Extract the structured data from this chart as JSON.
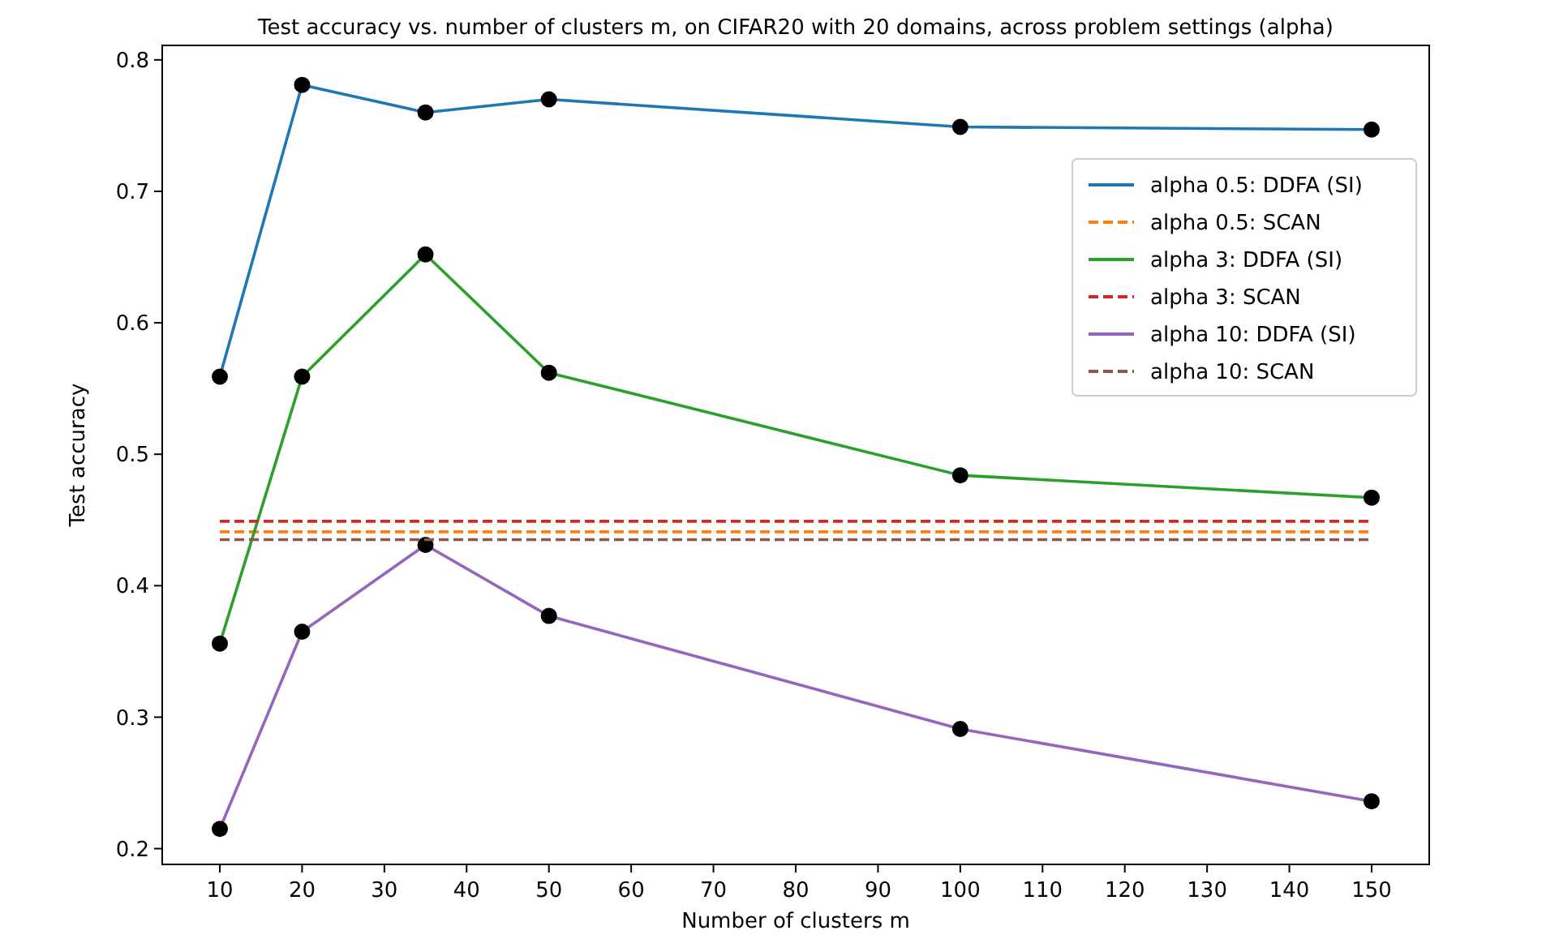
{
  "chart_data": {
    "type": "line",
    "title": "Test accuracy vs. number of clusters m, on CIFAR20 with 20 domains, across problem settings (alpha)",
    "xlabel": "Number of clusters m",
    "ylabel": "Test accuracy",
    "xlim": [
      3,
      157
    ],
    "xticks": [
      10,
      20,
      30,
      40,
      50,
      60,
      70,
      80,
      90,
      100,
      110,
      120,
      130,
      140,
      150
    ],
    "ylim": [
      0.188,
      0.811
    ],
    "yticks": [
      0.2,
      0.3,
      0.4,
      0.5,
      0.6,
      0.7,
      0.8
    ],
    "grid": false,
    "legend": "right",
    "marker": "circle",
    "series": [
      {
        "name": "alpha 0.5: DDFA (SI)",
        "color": "#1f77b4",
        "x": [
          10,
          20,
          35,
          50,
          100,
          150
        ],
        "values": [
          0.559,
          0.781,
          0.76,
          0.77,
          0.749,
          0.747
        ],
        "line_style": "solid"
      },
      {
        "name": "alpha 0.5: SCAN",
        "color": "#ff7f0e",
        "x": [
          10,
          150
        ],
        "values": [
          0.441,
          0.441
        ],
        "line_style": "dashed",
        "marker": "none"
      },
      {
        "name": "alpha 3: DDFA (SI)",
        "color": "#2ca02c",
        "x": [
          10,
          20,
          35,
          50,
          100,
          150
        ],
        "values": [
          0.356,
          0.559,
          0.652,
          0.562,
          0.484,
          0.467
        ],
        "line_style": "solid"
      },
      {
        "name": "alpha 3: SCAN",
        "color": "#d62728",
        "x": [
          10,
          150
        ],
        "values": [
          0.449,
          0.449
        ],
        "line_style": "dashed",
        "marker": "none"
      },
      {
        "name": "alpha 10: DDFA (SI)",
        "color": "#9467bd",
        "x": [
          10,
          20,
          35,
          50,
          100,
          150
        ],
        "values": [
          0.215,
          0.365,
          0.431,
          0.377,
          0.291,
          0.236
        ],
        "line_style": "solid"
      },
      {
        "name": "alpha 10: SCAN",
        "color": "#8c564b",
        "x": [
          10,
          150
        ],
        "values": [
          0.435,
          0.435
        ],
        "line_style": "dashed",
        "marker": "none"
      }
    ]
  }
}
